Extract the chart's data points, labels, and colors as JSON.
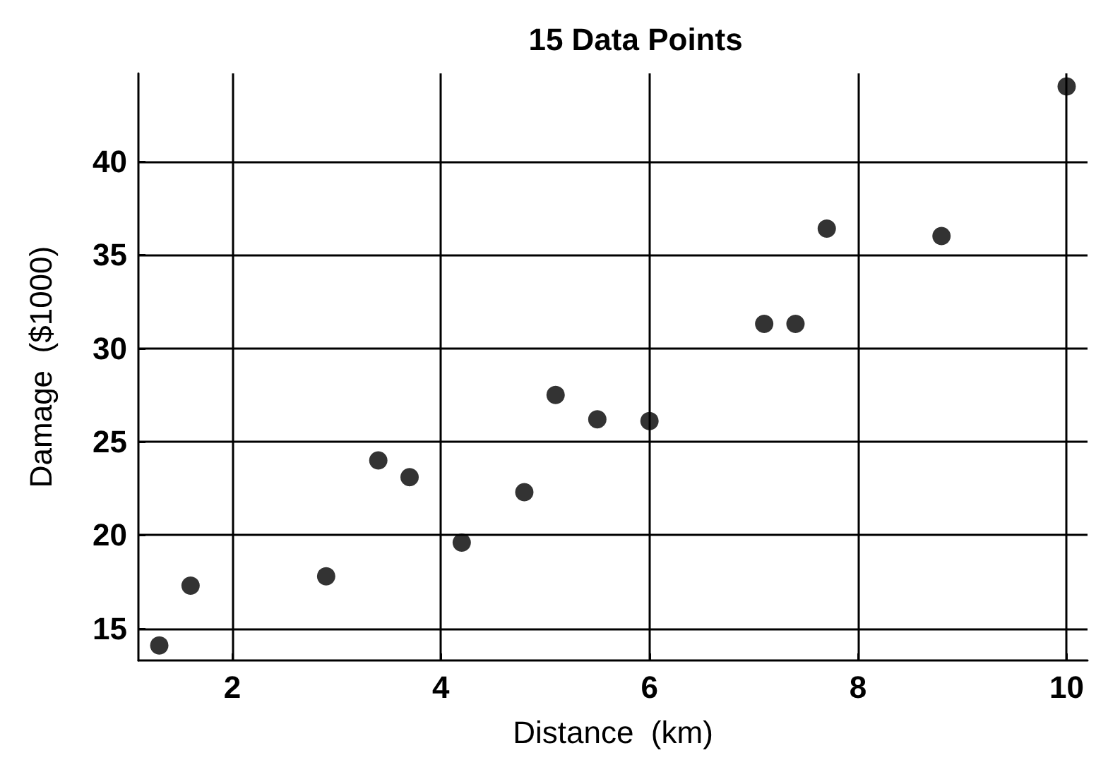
{
  "chart_data": {
    "type": "scatter",
    "title": "15 Data Points",
    "xlabel": "Distance  (km)",
    "ylabel": "Damage  ($1000)",
    "x": [
      1.3,
      1.6,
      2.9,
      3.4,
      3.7,
      4.2,
      4.8,
      5.1,
      5.5,
      6.0,
      7.1,
      7.4,
      7.7,
      8.8,
      10.0
    ],
    "values": [
      14.1,
      17.3,
      17.8,
      24.0,
      23.1,
      19.6,
      22.3,
      27.5,
      26.2,
      26.1,
      31.3,
      31.3,
      36.4,
      36.0,
      44.0
    ],
    "color": "#000000",
    "marker": "circle",
    "grid": true,
    "xlim": [
      1.1,
      10.2
    ],
    "xticks": [
      2,
      4,
      6,
      8,
      10
    ],
    "ylim": [
      13.3,
      44.7
    ],
    "yticks": [
      15,
      20,
      25,
      30,
      35,
      40
    ]
  }
}
